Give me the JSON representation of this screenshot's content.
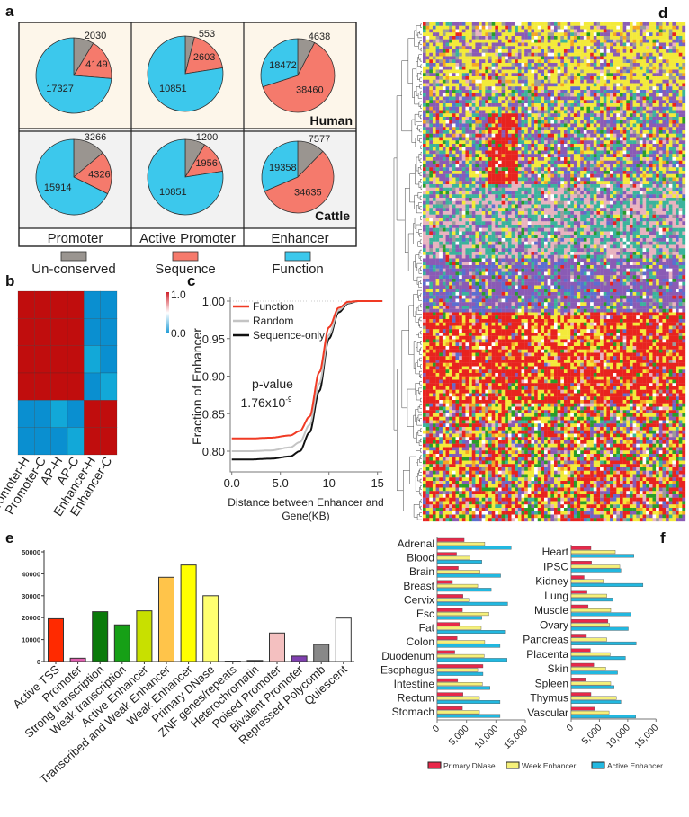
{
  "panel_labels": {
    "a": "a",
    "b": "b",
    "c": "c",
    "d": "d",
    "e": "e",
    "f": "f"
  },
  "chart_data": [
    {
      "panel": "a",
      "type": "pie",
      "columns": [
        "Promoter",
        "Active Promoter",
        "Enhancer"
      ],
      "rows": [
        "Human",
        "Cattle"
      ],
      "legend": [
        {
          "name": "Un-conserved",
          "color": "#9a9590"
        },
        {
          "name": "Sequence",
          "color": "#f57a6c"
        },
        {
          "name": "Function",
          "color": "#3cc8ec"
        }
      ],
      "pies": [
        [
          [
            2030,
            4149,
            17327
          ],
          [
            553,
            2603,
            10851
          ],
          [
            4638,
            38460,
            18472
          ]
        ],
        [
          [
            3266,
            4326,
            15914
          ],
          [
            1200,
            1956,
            10851
          ],
          [
            7577,
            34635,
            19358
          ]
        ]
      ],
      "row_backgrounds": [
        "#fdf6ea",
        "#f2f2f2"
      ]
    },
    {
      "panel": "b",
      "type": "heatmap",
      "labels": [
        "Promoter-H",
        "Promoter-C",
        "AP-H",
        "AP-C",
        "Enhancer-H",
        "Enhancer-C"
      ],
      "colorbar": {
        "max_label": "1.0",
        "min_label": "0.0",
        "high_color": "#c00d0d",
        "low_color": "#0a8fd0"
      },
      "values": [
        [
          1,
          1,
          1,
          1,
          0.08,
          0.1
        ],
        [
          1,
          1,
          1,
          1,
          0.08,
          0.08
        ],
        [
          1,
          1,
          1,
          1,
          0.15,
          0.08
        ],
        [
          1,
          1,
          1,
          1,
          0.08,
          0.15
        ],
        [
          0.1,
          0.1,
          0.15,
          0.08,
          1,
          1
        ],
        [
          0.1,
          0.1,
          0.08,
          0.18,
          1,
          1
        ]
      ]
    },
    {
      "panel": "c",
      "type": "line",
      "xlabel": "Distance between Enhancer and Gene(KB)",
      "ylabel": "Fraction of Enhancer",
      "xticks": [
        "0.0",
        "5.0",
        "10",
        "15"
      ],
      "yticks": [
        "0.80",
        "0.85",
        "0.90",
        "0.95",
        "1.00"
      ],
      "xlim": [
        -0.3,
        15.5
      ],
      "ylim": [
        0.775,
        1.005
      ],
      "annotation": {
        "line1": "p-value",
        "line2": "1.76x10",
        "exp": "-9"
      },
      "legend_position": "top-left",
      "x": [
        0,
        2,
        4,
        6,
        7,
        8,
        9,
        10,
        11,
        12,
        13,
        15.5
      ],
      "series": [
        {
          "name": "Function",
          "color": "#f03a24",
          "values": [
            0.817,
            0.817,
            0.818,
            0.821,
            0.827,
            0.846,
            0.905,
            0.965,
            0.991,
            0.999,
            1,
            1
          ]
        },
        {
          "name": "Random",
          "color": "#c4c4c4",
          "values": [
            0.8,
            0.8,
            0.801,
            0.805,
            0.812,
            0.835,
            0.89,
            0.955,
            0.988,
            0.998,
            1,
            1
          ]
        },
        {
          "name": "Sequence-only",
          "color": "#111111",
          "values": [
            0.789,
            0.789,
            0.79,
            0.793,
            0.8,
            0.825,
            0.88,
            0.95,
            0.985,
            0.997,
            1,
            1
          ]
        }
      ]
    },
    {
      "panel": "d",
      "type": "heatmap",
      "palette": [
        "#e8231f",
        "#f3ea3a",
        "#8a5bb5",
        "#3bb39c",
        "#e8b3c0",
        "#2a9d2a",
        "#5b6fd0",
        "#f5a623",
        "#ffffff",
        "#9b9b9b"
      ]
    },
    {
      "panel": "e",
      "type": "bar",
      "categories": [
        "Active TSS",
        "Promoter",
        "Strong transcription",
        "Weak transcription",
        "Active Enhancer",
        "Transcribed and Weak Enhancer",
        "Weak Enhancer",
        "Primary DNase",
        "ZNF genes/repeats",
        "Heterochromatin",
        "Poised Promoter",
        "Bivalent Promoter",
        "Repressed Polycomb",
        "Quiescent"
      ],
      "values": [
        19500,
        1500,
        22700,
        16700,
        23100,
        38400,
        44000,
        30000,
        200,
        500,
        13000,
        2500,
        7800,
        19800
      ],
      "colors": [
        "#ff2a00",
        "#e060b0",
        "#0a7a0a",
        "#16a016",
        "#c8e000",
        "#ffc44a",
        "#ffff00",
        "#ffff70",
        "#40b0a0",
        "#333333",
        "#f4c0c0",
        "#8040b0",
        "#888888",
        "#ffffff"
      ],
      "yticks": [
        "0",
        "10000",
        "20000",
        "30000",
        "40000",
        "50000"
      ],
      "ylim": [
        0,
        50000
      ]
    },
    {
      "panel": "f",
      "type": "bar",
      "orientation": "horizontal",
      "xticks": [
        "0",
        "5,000",
        "10,000",
        "15,000"
      ],
      "xlim": [
        0,
        15000
      ],
      "series_names": [
        "Primary DNase",
        "Week Enhancer",
        "Active Enhancer"
      ],
      "series_colors": [
        "#e8284a",
        "#f5f07a",
        "#22b8e0"
      ],
      "legend_position": "bottom",
      "groups": [
        {
          "categories": [
            "Adrenal",
            "Blood",
            "Brain",
            "Breast",
            "Cervix",
            "Esc",
            "Fat",
            "Colon",
            "Duodenum",
            "Esophagus",
            "Intestine",
            "Rectum",
            "Stomach"
          ],
          "values": [
            [
              4600,
              8100,
              12600
            ],
            [
              3300,
              5600,
              7600
            ],
            [
              3600,
              7300,
              10800
            ],
            [
              2600,
              6900,
              9200
            ],
            [
              4400,
              5400,
              12000
            ],
            [
              4300,
              8800,
              7600
            ],
            [
              3800,
              7500,
              11500
            ],
            [
              3400,
              8100,
              10700
            ],
            [
              3000,
              8000,
              11900
            ],
            [
              7800,
              6900,
              7800
            ],
            [
              3500,
              7700,
              9000
            ],
            [
              4400,
              7200,
              10700
            ],
            [
              4300,
              7200,
              10700
            ]
          ]
        },
        {
          "categories": [
            "Heart",
            "IPSC",
            "Kidney",
            "Lung",
            "Muscle",
            "Ovary",
            "Pancreas",
            "Placenta",
            "Skin",
            "Spleen",
            "Thymus",
            "Vascular"
          ],
          "values": [
            [
              3500,
              7800,
              11100
            ],
            [
              3600,
              8600,
              8800
            ],
            [
              2300,
              5700,
              12700
            ],
            [
              2800,
              6300,
              7400
            ],
            [
              3000,
              7000,
              10600
            ],
            [
              6500,
              6800,
              10100
            ],
            [
              2700,
              6300,
              11500
            ],
            [
              3400,
              6900,
              9600
            ],
            [
              4000,
              6100,
              8200
            ],
            [
              2500,
              7000,
              7600
            ],
            [
              3500,
              8000,
              8800
            ],
            [
              4100,
              6700,
              11400
            ]
          ]
        }
      ]
    }
  ]
}
